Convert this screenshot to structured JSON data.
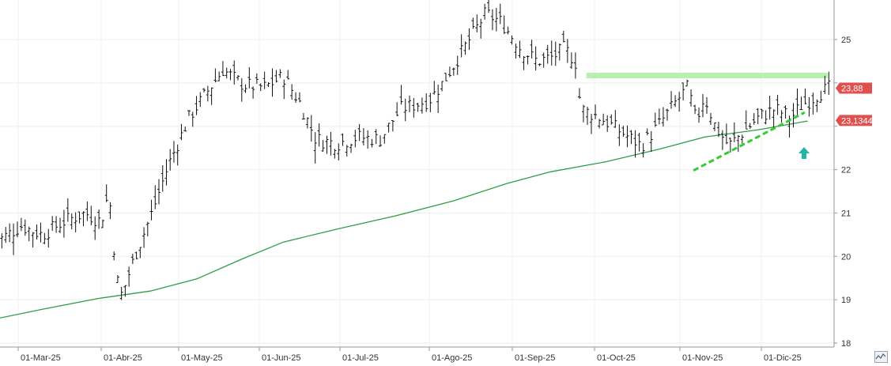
{
  "chart_data": {
    "type": "ohlc",
    "x_ticks": [
      "01-Mar-25",
      "01-Abr-25",
      "01-May-25",
      "01-Jun-25",
      "01-Jul-25",
      "01-Ago-25",
      "01-Sep-25",
      "01-Oct-25",
      "01-Nov-25",
      "01-Dic-25"
    ],
    "y_ticks": [
      "25",
      "22",
      "21",
      "20",
      "19",
      "18"
    ],
    "ylim": [
      18,
      25.8
    ],
    "grid": true,
    "price_labels": {
      "last": "23,88",
      "ma": "23,1344"
    },
    "colors": {
      "bars": "#111111",
      "ma": "#2e9e45",
      "resistance": "#b8f0b0",
      "trendline": "#33cc33",
      "arrow": "#22b5a6",
      "last_tag": "#e0504f"
    },
    "resistance_level": 24.18,
    "trendline": {
      "from": {
        "x": "2025-11-06",
        "y": 21.98
      },
      "to": {
        "x": "2025-12-17",
        "y": 23.32
      }
    },
    "arrow_icon": "up-arrow-icon",
    "corner_icon": "chart-wave-icon",
    "ma_series": [
      [
        "2025-02-20",
        18.55
      ],
      [
        "2025-03-10",
        18.78
      ],
      [
        "2025-03-31",
        19.03
      ],
      [
        "2025-04-20",
        19.2
      ],
      [
        "2025-05-08",
        19.48
      ],
      [
        "2025-05-25",
        19.93
      ],
      [
        "2025-06-10",
        20.33
      ],
      [
        "2025-06-30",
        20.63
      ],
      [
        "2025-07-20",
        20.93
      ],
      [
        "2025-08-10",
        21.28
      ],
      [
        "2025-08-30",
        21.68
      ],
      [
        "2025-09-15",
        21.95
      ],
      [
        "2025-10-05",
        22.18
      ],
      [
        "2025-10-25",
        22.48
      ],
      [
        "2025-11-10",
        22.75
      ],
      [
        "2025-11-30",
        22.92
      ],
      [
        "2025-12-18",
        23.12
      ]
    ],
    "close_series": [
      [
        "2025-02-20",
        20.3
      ],
      [
        "2025-03-02",
        20.7
      ],
      [
        "2025-03-10",
        20.5
      ],
      [
        "2025-03-18",
        20.8
      ],
      [
        "2025-03-26",
        21.0
      ],
      [
        "2025-04-01",
        20.8
      ],
      [
        "2025-04-04",
        21.5
      ],
      [
        "2025-04-07",
        19.5
      ],
      [
        "2025-04-09",
        19.1
      ],
      [
        "2025-04-14",
        20.0
      ],
      [
        "2025-04-20",
        20.9
      ],
      [
        "2025-04-27",
        22.1
      ],
      [
        "2025-05-05",
        23.2
      ],
      [
        "2025-05-12",
        23.8
      ],
      [
        "2025-05-18",
        24.3
      ],
      [
        "2025-05-26",
        23.95
      ],
      [
        "2025-06-03",
        23.9
      ],
      [
        "2025-06-10",
        24.15
      ],
      [
        "2025-06-16",
        23.55
      ],
      [
        "2025-06-22",
        22.7
      ],
      [
        "2025-06-30",
        22.6
      ],
      [
        "2025-07-07",
        22.75
      ],
      [
        "2025-07-15",
        22.7
      ],
      [
        "2025-07-22",
        23.4
      ],
      [
        "2025-08-01",
        23.6
      ],
      [
        "2025-08-06",
        24.0
      ],
      [
        "2025-08-11",
        24.5
      ],
      [
        "2025-08-17",
        25.1
      ],
      [
        "2025-08-22",
        25.6
      ],
      [
        "2025-08-28",
        25.4
      ],
      [
        "2025-09-04",
        24.8
      ],
      [
        "2025-09-10",
        24.5
      ],
      [
        "2025-09-16",
        24.6
      ],
      [
        "2025-09-20",
        24.8
      ],
      [
        "2025-09-24",
        24.5
      ],
      [
        "2025-09-26",
        23.4
      ],
      [
        "2025-10-03",
        23.2
      ],
      [
        "2025-10-10",
        22.9
      ],
      [
        "2025-10-18",
        22.55
      ],
      [
        "2025-10-24",
        23.0
      ],
      [
        "2025-10-31",
        23.6
      ],
      [
        "2025-11-04",
        23.9
      ],
      [
        "2025-11-07",
        23.1
      ],
      [
        "2025-11-10",
        23.7
      ],
      [
        "2025-11-14",
        23.0
      ],
      [
        "2025-11-19",
        22.55
      ],
      [
        "2025-11-24",
        22.85
      ],
      [
        "2025-11-30",
        23.2
      ],
      [
        "2025-12-06",
        23.4
      ],
      [
        "2025-12-12",
        23.2
      ],
      [
        "2025-12-16",
        23.5
      ],
      [
        "2025-12-19",
        23.6
      ],
      [
        "2025-12-22",
        23.75
      ],
      [
        "2025-12-26",
        23.88
      ]
    ]
  }
}
